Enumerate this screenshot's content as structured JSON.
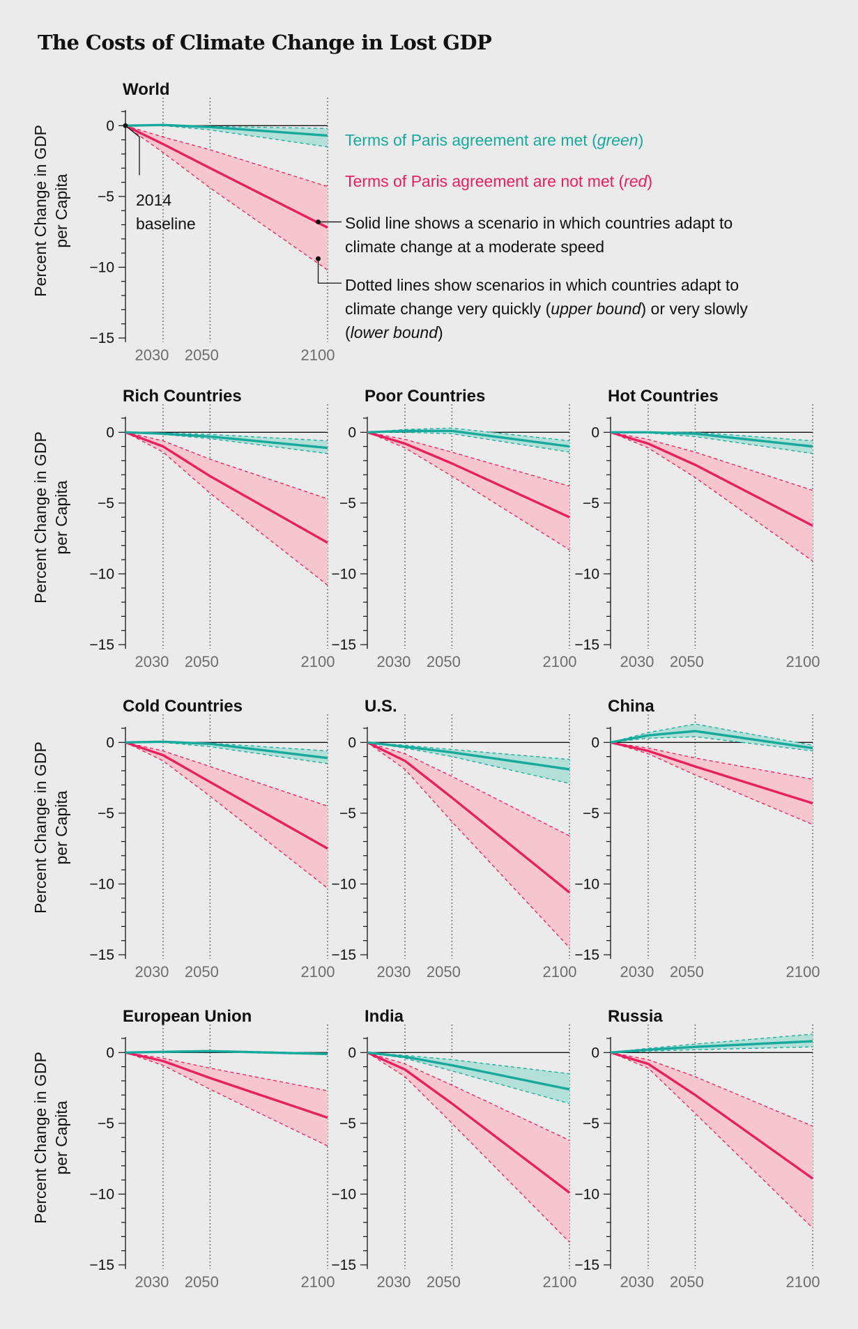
{
  "title": "The Costs of Climate Change in Lost GDP",
  "colors": {
    "green": "#17a99c",
    "green_fill": "#b3e0d8",
    "red": "#e8205e",
    "red_fill": "#f7c6cf",
    "background": "#ebebeb"
  },
  "y_axis": {
    "label_line1": "Percent Change in GDP",
    "label_line2": "per Capita",
    "ticks": [
      0,
      -5,
      -10,
      -15
    ],
    "tick_labels": [
      "0",
      "−5",
      "−10",
      "−15"
    ],
    "ylim": [
      -15,
      1
    ]
  },
  "x_axis": {
    "ticks": [
      2030,
      2050,
      2100
    ],
    "tick_labels": [
      "2030",
      "2050",
      "2100"
    ],
    "xlim": [
      2014,
      2100
    ]
  },
  "legend": {
    "green_text": "Terms of Paris agreement are met (",
    "green_italic": "green",
    "green_close": ")",
    "red_text": "Terms of Paris agreement are not met (",
    "red_italic": "red",
    "red_close": ")",
    "baseline_line1": "2014",
    "baseline_line2": "baseline",
    "solid_line1": "Solid line shows a scenario in which countries adapt to",
    "solid_line2": "climate change at a moderate speed",
    "dotted_line1": "Dotted lines show scenarios in which countries adapt to",
    "dotted_line2a": "climate change very quickly (",
    "dotted_upper": "upper bound",
    "dotted_line2b": ") or very slowly",
    "dotted_line3a": "(",
    "dotted_lower": "lower bound",
    "dotted_line3b": ")"
  },
  "chart_data": [
    {
      "name": "World",
      "type": "line",
      "x": [
        2014,
        2030,
        2050,
        2100
      ],
      "series": [
        {
          "name": "Terms of Paris agreement are met",
          "color": "green",
          "mid": [
            0,
            0.05,
            -0.1,
            -0.7
          ],
          "upper": [
            0,
            0.05,
            -0.05,
            -0.2
          ],
          "lower": [
            0,
            0.0,
            -0.3,
            -1.5
          ]
        },
        {
          "name": "Terms of Paris agreement are not met",
          "color": "red",
          "mid": [
            0,
            -1.3,
            -3.0,
            -7.2
          ],
          "upper": [
            0,
            -0.8,
            -1.7,
            -4.3
          ],
          "lower": [
            0,
            -1.9,
            -4.4,
            -10.2
          ]
        }
      ]
    },
    {
      "name": "Rich Countries",
      "type": "line",
      "x": [
        2014,
        2030,
        2050,
        2100
      ],
      "series": [
        {
          "name": "Terms of Paris agreement are met",
          "color": "green",
          "mid": [
            0,
            -0.1,
            -0.3,
            -1.1
          ],
          "upper": [
            0,
            -0.05,
            -0.15,
            -0.6
          ],
          "lower": [
            0,
            -0.15,
            -0.45,
            -1.5
          ]
        },
        {
          "name": "Terms of Paris agreement are not met",
          "color": "red",
          "mid": [
            0,
            -1.0,
            -3.1,
            -7.8
          ],
          "upper": [
            0,
            -0.6,
            -1.9,
            -4.7
          ],
          "lower": [
            0,
            -1.4,
            -4.3,
            -10.8
          ]
        }
      ]
    },
    {
      "name": "Poor Countries",
      "type": "line",
      "x": [
        2014,
        2030,
        2050,
        2100
      ],
      "series": [
        {
          "name": "Terms of Paris agreement are met",
          "color": "green",
          "mid": [
            0,
            0.1,
            0.1,
            -1.0
          ],
          "upper": [
            0,
            0.2,
            0.3,
            -0.6
          ],
          "lower": [
            0,
            0.0,
            -0.1,
            -1.4
          ]
        },
        {
          "name": "Terms of Paris agreement are not met",
          "color": "red",
          "mid": [
            0,
            -0.8,
            -2.2,
            -6.0
          ],
          "upper": [
            0,
            -0.5,
            -1.4,
            -3.8
          ],
          "lower": [
            0,
            -1.1,
            -3.1,
            -8.3
          ]
        }
      ]
    },
    {
      "name": "Hot Countries",
      "type": "line",
      "x": [
        2014,
        2030,
        2050,
        2100
      ],
      "series": [
        {
          "name": "Terms of Paris agreement are met",
          "color": "green",
          "mid": [
            0,
            0.0,
            -0.1,
            -1.0
          ],
          "upper": [
            0,
            0.0,
            0.0,
            -0.6
          ],
          "lower": [
            0,
            -0.05,
            -0.3,
            -1.5
          ]
        },
        {
          "name": "Terms of Paris agreement are not met",
          "color": "red",
          "mid": [
            0,
            -0.8,
            -2.3,
            -6.6
          ],
          "upper": [
            0,
            -0.5,
            -1.4,
            -4.1
          ],
          "lower": [
            0,
            -1.1,
            -3.2,
            -9.1
          ]
        }
      ]
    },
    {
      "name": "Cold Countries",
      "type": "line",
      "x": [
        2014,
        2030,
        2050,
        2100
      ],
      "series": [
        {
          "name": "Terms of Paris agreement are met",
          "color": "green",
          "mid": [
            0,
            0.05,
            -0.1,
            -1.1
          ],
          "upper": [
            0,
            0.05,
            -0.05,
            -0.6
          ],
          "lower": [
            0,
            0.0,
            -0.3,
            -1.5
          ]
        },
        {
          "name": "Terms of Paris agreement are not met",
          "color": "red",
          "mid": [
            0,
            -0.9,
            -2.8,
            -7.5
          ],
          "upper": [
            0,
            -0.6,
            -1.7,
            -4.5
          ],
          "lower": [
            0,
            -1.3,
            -3.8,
            -10.3
          ]
        }
      ]
    },
    {
      "name": "U.S.",
      "type": "line",
      "x": [
        2014,
        2030,
        2050,
        2100
      ],
      "series": [
        {
          "name": "Terms of Paris agreement are met",
          "color": "green",
          "mid": [
            0,
            -0.3,
            -0.7,
            -1.9
          ],
          "upper": [
            0,
            -0.2,
            -0.5,
            -1.2
          ],
          "lower": [
            0,
            -0.4,
            -1.0,
            -2.9
          ]
        },
        {
          "name": "Terms of Paris agreement are not met",
          "color": "red",
          "mid": [
            0,
            -1.3,
            -3.9,
            -10.6
          ],
          "upper": [
            0,
            -0.8,
            -2.4,
            -6.6
          ],
          "lower": [
            0,
            -1.9,
            -5.6,
            -14.5
          ]
        }
      ]
    },
    {
      "name": "China",
      "type": "line",
      "x": [
        2014,
        2030,
        2050,
        2100
      ],
      "series": [
        {
          "name": "Terms of Paris agreement are met",
          "color": "green",
          "mid": [
            0,
            0.5,
            0.8,
            -0.4
          ],
          "upper": [
            0,
            0.7,
            1.3,
            -0.2
          ],
          "lower": [
            0,
            0.3,
            0.4,
            -0.6
          ]
        },
        {
          "name": "Terms of Paris agreement are not met",
          "color": "red",
          "mid": [
            0,
            -0.6,
            -1.7,
            -4.3
          ],
          "upper": [
            0,
            -0.4,
            -1.1,
            -2.6
          ],
          "lower": [
            0,
            -0.8,
            -2.3,
            -5.8
          ]
        }
      ]
    },
    {
      "name": "European Union",
      "type": "line",
      "x": [
        2014,
        2030,
        2050,
        2100
      ],
      "series": [
        {
          "name": "Terms of Paris agreement are met",
          "color": "green",
          "mid": [
            0,
            0.05,
            0.1,
            -0.1
          ],
          "upper": [
            0,
            0.08,
            0.15,
            -0.05
          ],
          "lower": [
            0,
            0.0,
            0.05,
            -0.15
          ]
        },
        {
          "name": "Terms of Paris agreement are not met",
          "color": "red",
          "mid": [
            0,
            -0.6,
            -1.8,
            -4.6
          ],
          "upper": [
            0,
            -0.4,
            -1.1,
            -2.7
          ],
          "lower": [
            0,
            -0.9,
            -2.6,
            -6.6
          ]
        }
      ]
    },
    {
      "name": "India",
      "type": "line",
      "x": [
        2014,
        2030,
        2050,
        2100
      ],
      "series": [
        {
          "name": "Terms of Paris agreement are met",
          "color": "green",
          "mid": [
            0,
            -0.3,
            -0.9,
            -2.6
          ],
          "upper": [
            0,
            -0.2,
            -0.5,
            -1.5
          ],
          "lower": [
            0,
            -0.4,
            -1.3,
            -3.6
          ]
        },
        {
          "name": "Terms of Paris agreement are not met",
          "color": "red",
          "mid": [
            0,
            -1.2,
            -3.6,
            -9.9
          ],
          "upper": [
            0,
            -0.8,
            -2.3,
            -6.2
          ],
          "lower": [
            0,
            -1.7,
            -5.0,
            -13.4
          ]
        }
      ]
    },
    {
      "name": "Russia",
      "type": "line",
      "x": [
        2014,
        2030,
        2050,
        2100
      ],
      "series": [
        {
          "name": "Terms of Paris agreement are met",
          "color": "green",
          "mid": [
            0,
            0.2,
            0.4,
            0.8
          ],
          "upper": [
            0,
            0.3,
            0.6,
            1.3
          ],
          "lower": [
            0,
            0.1,
            0.2,
            0.4
          ]
        },
        {
          "name": "Terms of Paris agreement are not met",
          "color": "red",
          "mid": [
            0,
            -0.8,
            -3.0,
            -8.9
          ],
          "upper": [
            0,
            -0.5,
            -1.7,
            -5.2
          ],
          "lower": [
            0,
            -1.1,
            -4.3,
            -12.4
          ]
        }
      ]
    }
  ]
}
